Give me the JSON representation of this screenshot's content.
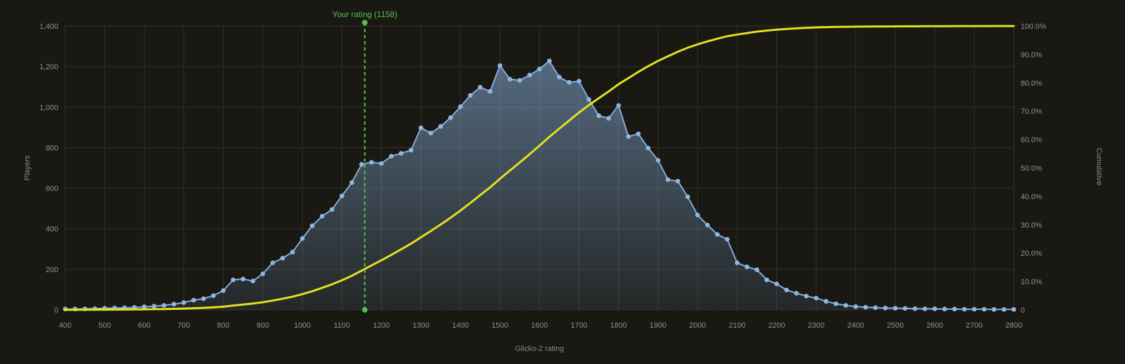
{
  "page": {
    "background": "#191813"
  },
  "chart_data": {
    "type": "area",
    "title": "",
    "description": "Rating distribution histogram (blue area with point markers) with yellow cumulative percentage curve and green dashed marker at the user's own rating",
    "x_axis": {
      "label": "Glicko-2 rating",
      "min": 400,
      "max": 2800,
      "tick_step": 100,
      "ticks": [
        400,
        500,
        600,
        700,
        800,
        900,
        1000,
        1100,
        1200,
        1300,
        1400,
        1500,
        1600,
        1700,
        1800,
        1900,
        2000,
        2100,
        2200,
        2300,
        2400,
        2500,
        2600,
        2700,
        2800
      ]
    },
    "y_axis_left": {
      "label": "Players",
      "min": 0,
      "max": 1400,
      "tick_step": 200,
      "tick_labels": [
        "0",
        "200",
        "400",
        "600",
        "800",
        "1,000",
        "1,200",
        "1,400"
      ]
    },
    "y_axis_right": {
      "label": "Cumulative",
      "min": 0,
      "max": 100,
      "tick_step": 10,
      "tick_labels": [
        "0",
        "10.0%",
        "20.0%",
        "30.0%",
        "40.0%",
        "50.0%",
        "60.0%",
        "70.0%",
        "80.0%",
        "90.0%",
        "100.0%"
      ]
    },
    "grid": true,
    "legend": "none",
    "series": [
      {
        "name": "Players",
        "type": "area-with-markers",
        "color": "#85aed8",
        "marker_color": "#8db6e0",
        "x": [
          400,
          425,
          450,
          475,
          500,
          525,
          550,
          575,
          600,
          625,
          650,
          675,
          700,
          725,
          750,
          775,
          800,
          825,
          850,
          875,
          900,
          925,
          950,
          975,
          1000,
          1025,
          1050,
          1075,
          1100,
          1125,
          1150,
          1175,
          1200,
          1225,
          1250,
          1275,
          1300,
          1325,
          1350,
          1375,
          1400,
          1425,
          1450,
          1475,
          1500,
          1525,
          1550,
          1575,
          1600,
          1625,
          1650,
          1675,
          1700,
          1725,
          1750,
          1775,
          1800,
          1825,
          1850,
          1875,
          1900,
          1925,
          1950,
          1975,
          2000,
          2025,
          2050,
          2075,
          2100,
          2125,
          2150,
          2175,
          2200,
          2225,
          2250,
          2275,
          2300,
          2325,
          2350,
          2375,
          2400,
          2425,
          2450,
          2475,
          2500,
          2525,
          2550,
          2575,
          2600,
          2625,
          2650,
          2675,
          2700,
          2725,
          2750,
          2775,
          2800
        ],
        "values": [
          4,
          4,
          5,
          6,
          8,
          9,
          10,
          12,
          15,
          18,
          22,
          28,
          36,
          48,
          55,
          70,
          95,
          148,
          152,
          142,
          178,
          232,
          255,
          285,
          352,
          415,
          462,
          495,
          562,
          628,
          718,
          728,
          722,
          758,
          772,
          788,
          898,
          872,
          905,
          948,
          1002,
          1058,
          1098,
          1078,
          1205,
          1138,
          1132,
          1158,
          1188,
          1228,
          1148,
          1122,
          1128,
          1038,
          958,
          945,
          1008,
          855,
          868,
          798,
          738,
          642,
          635,
          558,
          468,
          418,
          372,
          348,
          232,
          212,
          198,
          148,
          128,
          98,
          82,
          68,
          58,
          42,
          30,
          22,
          16,
          13,
          11,
          9,
          8,
          7,
          6,
          5,
          5,
          4,
          4,
          3,
          3,
          3,
          2,
          2,
          2
        ]
      },
      {
        "name": "Cumulative",
        "type": "line",
        "color": "#e4e21d",
        "derived": "running cumulative sum of Players values expressed as percent of total, plotted on right axis (0 to 100%)"
      }
    ],
    "annotation": {
      "label": "Your rating (1158)",
      "x": 1158,
      "color": "#57c04a",
      "style": "vertical dashed line with round caps top and bottom"
    },
    "colors": {
      "background": "#191813",
      "grid": "#32312b",
      "area_line": "#85aed8",
      "area_fill_top": "rgba(134,174,218,0.55)",
      "area_fill_bottom": "rgba(134,174,218,0.10)",
      "cumulative_line": "#e4e21d",
      "your_rating": "#57c04a",
      "tick_text": "#93938a"
    }
  }
}
